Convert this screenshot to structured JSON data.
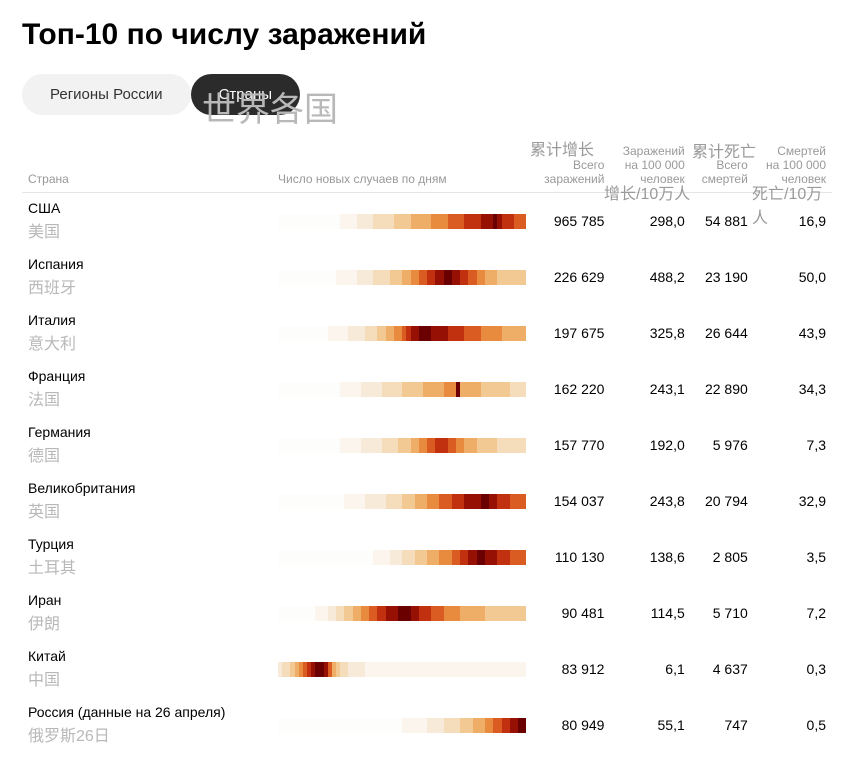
{
  "title": "Топ-10 по числу заражений",
  "tabs": {
    "regions": "Регионы России",
    "countries": "Страны",
    "active": "countries"
  },
  "overlays": {
    "tab_countries_cn": "世界各国",
    "col3_cn": "累计增长",
    "col5_cn": "累计死亡",
    "row2_col4_cn": "增长/10万人",
    "row2_col6_cn": "死亡/10万人"
  },
  "columns": {
    "country": "Страна",
    "daily": "Число новых случаев по дням",
    "total_inf": "Всего\nзаражений",
    "inf_per100k": "Заражений\nна 100 000\nчеловек",
    "total_deaths": "Всего\nсмертей",
    "deaths_per100k": "Смертей\nна 100 000\nчеловек"
  },
  "heat_palette": [
    "#fdfdfc",
    "#fbf5ee",
    "#f8ead8",
    "#f5dcbb",
    "#f2c893",
    "#eeae68",
    "#e88b3f",
    "#db5c22",
    "#c1310f",
    "#961003",
    "#6b0000"
  ],
  "heat_len": 60,
  "rows": [
    {
      "name_ru": "США",
      "name_cn": "美国",
      "total_inf": "965 785",
      "per100k_inf": "298,0",
      "total_deaths": "54 881",
      "per100k_deaths": "16,9",
      "heat": [
        0,
        0,
        0,
        0,
        0,
        0,
        0,
        0,
        0,
        0,
        0,
        0,
        0,
        0,
        0,
        1,
        1,
        1,
        1,
        2,
        2,
        2,
        2,
        3,
        3,
        3,
        3,
        3,
        4,
        4,
        4,
        4,
        5,
        5,
        5,
        5,
        5,
        6,
        6,
        6,
        6,
        7,
        7,
        7,
        7,
        8,
        8,
        8,
        8,
        9,
        9,
        9,
        10,
        9,
        8,
        8,
        8,
        7,
        7,
        7
      ]
    },
    {
      "name_ru": "Испания",
      "name_cn": "西班牙",
      "total_inf": "226 629",
      "per100k_inf": "488,2",
      "total_deaths": "23 190",
      "per100k_deaths": "50,0",
      "heat": [
        0,
        0,
        0,
        0,
        0,
        0,
        0,
        0,
        0,
        0,
        0,
        0,
        0,
        0,
        1,
        1,
        1,
        1,
        1,
        2,
        2,
        2,
        2,
        3,
        3,
        3,
        3,
        4,
        4,
        4,
        5,
        5,
        6,
        6,
        7,
        7,
        8,
        8,
        9,
        9,
        10,
        10,
        9,
        9,
        8,
        8,
        7,
        7,
        6,
        6,
        5,
        5,
        5,
        4,
        4,
        4,
        4,
        4,
        4,
        4
      ]
    },
    {
      "name_ru": "Италия",
      "name_cn": "意大利",
      "total_inf": "197 675",
      "per100k_inf": "325,8",
      "total_deaths": "26 644",
      "per100k_deaths": "43,9",
      "heat": [
        0,
        0,
        0,
        0,
        0,
        0,
        0,
        0,
        0,
        0,
        0,
        0,
        1,
        1,
        1,
        1,
        1,
        2,
        2,
        2,
        2,
        3,
        3,
        3,
        4,
        4,
        5,
        5,
        6,
        6,
        7,
        8,
        9,
        9,
        10,
        10,
        10,
        9,
        9,
        9,
        9,
        8,
        8,
        8,
        8,
        7,
        7,
        7,
        7,
        6,
        6,
        6,
        6,
        6,
        5,
        5,
        5,
        5,
        5,
        5
      ]
    },
    {
      "name_ru": "Франция",
      "name_cn": "法国",
      "total_inf": "162 220",
      "per100k_inf": "243,1",
      "total_deaths": "22 890",
      "per100k_deaths": "34,3",
      "heat": [
        0,
        0,
        0,
        0,
        0,
        0,
        0,
        0,
        0,
        0,
        0,
        0,
        0,
        0,
        0,
        1,
        1,
        1,
        1,
        1,
        2,
        2,
        2,
        2,
        2,
        3,
        3,
        3,
        3,
        3,
        4,
        4,
        4,
        4,
        4,
        5,
        5,
        5,
        5,
        5,
        6,
        6,
        6,
        10,
        5,
        5,
        5,
        5,
        5,
        4,
        4,
        4,
        4,
        4,
        4,
        4,
        3,
        3,
        3,
        3
      ]
    },
    {
      "name_ru": "Германия",
      "name_cn": "德国",
      "total_inf": "157 770",
      "per100k_inf": "192,0",
      "total_deaths": "5 976",
      "per100k_deaths": "7,3",
      "heat": [
        0,
        0,
        0,
        0,
        0,
        0,
        0,
        0,
        0,
        0,
        0,
        0,
        0,
        0,
        0,
        1,
        1,
        1,
        1,
        1,
        2,
        2,
        2,
        2,
        2,
        3,
        3,
        3,
        3,
        4,
        4,
        4,
        5,
        5,
        6,
        6,
        7,
        7,
        8,
        8,
        8,
        7,
        7,
        6,
        6,
        5,
        5,
        5,
        4,
        4,
        4,
        4,
        4,
        3,
        3,
        3,
        3,
        3,
        3,
        3
      ]
    },
    {
      "name_ru": "Великобритания",
      "name_cn": "英国",
      "total_inf": "154 037",
      "per100k_inf": "243,8",
      "total_deaths": "20 794",
      "per100k_deaths": "32,9",
      "heat": [
        0,
        0,
        0,
        0,
        0,
        0,
        0,
        0,
        0,
        0,
        0,
        0,
        0,
        0,
        0,
        0,
        1,
        1,
        1,
        1,
        1,
        2,
        2,
        2,
        2,
        2,
        3,
        3,
        3,
        3,
        4,
        4,
        4,
        5,
        5,
        5,
        6,
        6,
        6,
        7,
        7,
        7,
        8,
        8,
        8,
        9,
        9,
        9,
        9,
        10,
        10,
        9,
        9,
        8,
        8,
        8,
        7,
        7,
        7,
        7
      ]
    },
    {
      "name_ru": "Турция",
      "name_cn": "土耳其",
      "total_inf": "110 130",
      "per100k_inf": "138,6",
      "total_deaths": "2 805",
      "per100k_deaths": "3,5",
      "heat": [
        0,
        0,
        0,
        0,
        0,
        0,
        0,
        0,
        0,
        0,
        0,
        0,
        0,
        0,
        0,
        0,
        0,
        0,
        0,
        0,
        0,
        0,
        0,
        1,
        1,
        1,
        1,
        2,
        2,
        2,
        3,
        3,
        3,
        4,
        4,
        4,
        5,
        5,
        5,
        6,
        6,
        6,
        7,
        7,
        8,
        8,
        9,
        9,
        10,
        10,
        9,
        9,
        9,
        8,
        8,
        8,
        7,
        7,
        7,
        7
      ]
    },
    {
      "name_ru": "Иран",
      "name_cn": "伊朗",
      "total_inf": "90 481",
      "per100k_inf": "114,5",
      "total_deaths": "5 710",
      "per100k_deaths": "7,2",
      "heat": [
        0,
        0,
        0,
        0,
        0,
        0,
        0,
        0,
        0,
        1,
        1,
        1,
        2,
        2,
        3,
        3,
        4,
        4,
        5,
        5,
        6,
        6,
        7,
        7,
        8,
        8,
        9,
        9,
        9,
        10,
        10,
        10,
        9,
        9,
        8,
        8,
        8,
        7,
        7,
        7,
        6,
        6,
        6,
        6,
        5,
        5,
        5,
        5,
        5,
        5,
        4,
        4,
        4,
        4,
        4,
        4,
        4,
        4,
        4,
        4
      ]
    },
    {
      "name_ru": "Китай",
      "name_cn": "中国",
      "total_inf": "83 912",
      "per100k_inf": "6,1",
      "total_deaths": "4 637",
      "per100k_deaths": "0,3",
      "heat": [
        2,
        3,
        3,
        4,
        5,
        6,
        7,
        8,
        9,
        10,
        10,
        9,
        7,
        5,
        4,
        3,
        3,
        2,
        2,
        2,
        2,
        1,
        1,
        1,
        1,
        1,
        1,
        1,
        1,
        1,
        1,
        1,
        1,
        1,
        1,
        1,
        1,
        1,
        1,
        1,
        1,
        1,
        1,
        1,
        1,
        1,
        1,
        1,
        1,
        1,
        1,
        1,
        1,
        1,
        1,
        1,
        1,
        1,
        1,
        1
      ]
    },
    {
      "name_ru": "Россия (данные на 26 апреля)",
      "name_cn": "俄罗斯26日",
      "total_inf": "80 949",
      "per100k_inf": "55,1",
      "total_deaths": "747",
      "per100k_deaths": "0,5",
      "heat": [
        0,
        0,
        0,
        0,
        0,
        0,
        0,
        0,
        0,
        0,
        0,
        0,
        0,
        0,
        0,
        0,
        0,
        0,
        0,
        0,
        0,
        0,
        0,
        0,
        0,
        0,
        0,
        0,
        0,
        0,
        1,
        1,
        1,
        1,
        1,
        1,
        2,
        2,
        2,
        2,
        3,
        3,
        3,
        3,
        4,
        4,
        4,
        5,
        5,
        5,
        6,
        6,
        7,
        7,
        8,
        8,
        9,
        9,
        10,
        10
      ]
    }
  ]
}
